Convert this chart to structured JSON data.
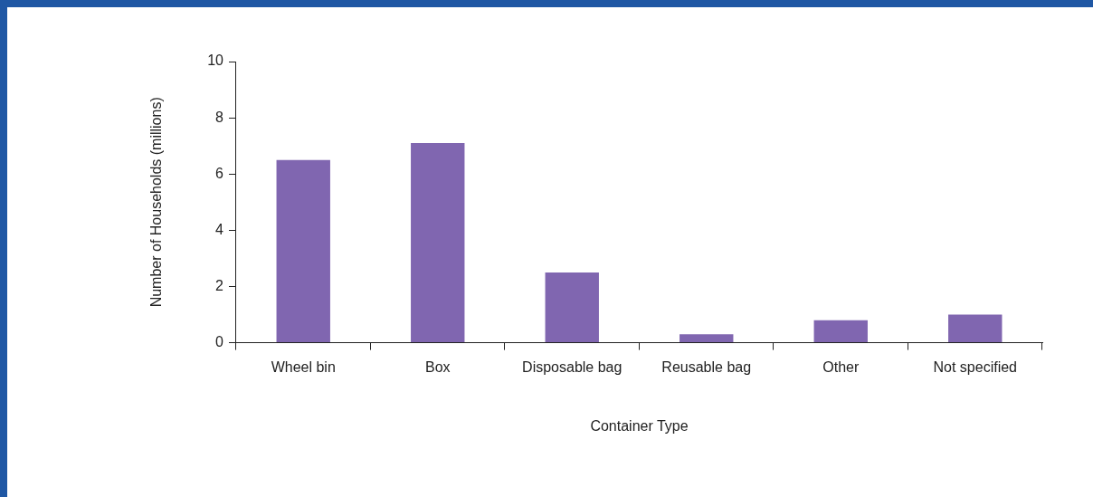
{
  "chart_data": {
    "type": "bar",
    "xlabel": "Container Type",
    "ylabel": "Number of Households (millions)",
    "categories": [
      "Wheel bin",
      "Box",
      "Disposable bag",
      "Reusable bag",
      "Other",
      "Not specified"
    ],
    "values": [
      6.5,
      7.1,
      2.5,
      0.3,
      0.8,
      1.0
    ],
    "color": "#8066b0",
    "ylim": [
      0,
      10
    ],
    "yticks": [
      0,
      2,
      4,
      6,
      8,
      10
    ],
    "grid": false,
    "legend": false
  }
}
